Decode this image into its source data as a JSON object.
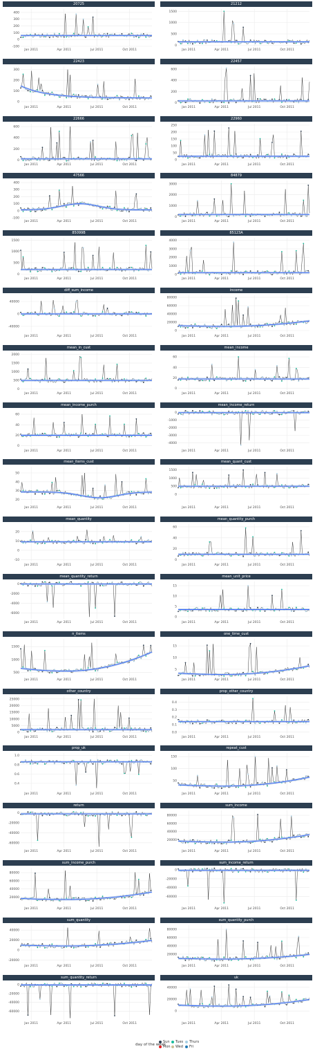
{
  "legend": {
    "title": "day of the week",
    "items": [
      {
        "label": "Sun",
        "color": "#2c3e50"
      },
      {
        "label": "Mon",
        "color": "#e31a1c"
      },
      {
        "label": "Tues",
        "color": "#18bc9c"
      },
      {
        "label": "Wed",
        "color": "#ccbe93"
      },
      {
        "label": "Thurs",
        "color": "#a6cee3"
      },
      {
        "label": "Fri",
        "color": "#1f78b4"
      }
    ]
  },
  "colors": {
    "strip": "#2c3e50",
    "line": "#000000",
    "smooth": "#3366ff",
    "band": "#b0c4de"
  },
  "x_ticks": [
    "Jan 2011",
    "Apr 2011",
    "Jul 2011",
    "Oct 2011"
  ],
  "chart_data": [
    {
      "type": "line",
      "title": "20725",
      "yticks": [
        "-100",
        "0",
        "100",
        "200",
        "300",
        "400"
      ],
      "ylim": [
        -100,
        450
      ],
      "base": 60,
      "spike": 380,
      "trend": "flat"
    },
    {
      "type": "line",
      "title": "21212",
      "yticks": [
        "0",
        "500",
        "1000",
        "1500"
      ],
      "ylim": [
        -50,
        1600
      ],
      "base": 150,
      "spike": 1500,
      "trend": "flat"
    },
    {
      "type": "line",
      "title": "22423",
      "yticks": [
        "0",
        "100",
        "200",
        "300"
      ],
      "ylim": [
        -20,
        330
      ],
      "base": 60,
      "spike": 300,
      "trend": "decay"
    },
    {
      "type": "line",
      "title": "22457",
      "yticks": [
        "0",
        "200",
        "400",
        "600"
      ],
      "ylim": [
        -20,
        650
      ],
      "base": 30,
      "spike": 620,
      "trend": "flat"
    },
    {
      "type": "line",
      "title": "22666",
      "yticks": [
        "0",
        "200",
        "400",
        "600"
      ],
      "ylim": [
        -20,
        650
      ],
      "base": 20,
      "spike": 600,
      "trend": "flat"
    },
    {
      "type": "line",
      "title": "22960",
      "yticks": [
        "0",
        "50",
        "100",
        "150",
        "200",
        "250"
      ],
      "ylim": [
        -10,
        260
      ],
      "base": 25,
      "spike": 230,
      "trend": "flat"
    },
    {
      "type": "line",
      "title": "47566",
      "yticks": [
        "-100",
        "0",
        "100",
        "200",
        "300",
        "400"
      ],
      "ylim": [
        -100,
        430
      ],
      "base": 40,
      "spike": 350,
      "trend": "hump"
    },
    {
      "type": "line",
      "title": "84879",
      "yticks": [
        "0",
        "1000",
        "2000",
        "3000"
      ],
      "ylim": [
        -100,
        3300
      ],
      "base": 200,
      "spike": 3000,
      "trend": "flat"
    },
    {
      "type": "line",
      "title": "85099B",
      "yticks": [
        "0",
        "500",
        "1000",
        "1500"
      ],
      "ylim": [
        -50,
        1600
      ],
      "base": 200,
      "spike": 1400,
      "trend": "flat"
    },
    {
      "type": "line",
      "title": "85123A",
      "yticks": [
        "0",
        "1000",
        "2000",
        "3000",
        "4000"
      ],
      "ylim": [
        -100,
        4300
      ],
      "base": 200,
      "spike": 3800,
      "trend": "flat"
    },
    {
      "type": "line",
      "title": "diff_sum_income",
      "yticks": [
        "-40000",
        "0",
        "40000"
      ],
      "ylim": [
        -60000,
        60000
      ],
      "base": 0,
      "spike": 45000,
      "trend": "flat"
    },
    {
      "type": "line",
      "title": "income",
      "yticks": [
        "0",
        "20000",
        "40000",
        "60000",
        "80000"
      ],
      "ylim": [
        -5000,
        85000
      ],
      "base": 18000,
      "spike": 78000,
      "trend": "rise"
    },
    {
      "type": "line",
      "title": "mean_in_cust",
      "yticks": [
        "0",
        "500",
        "1000",
        "1500",
        "2000"
      ],
      "ylim": [
        -50,
        2100
      ],
      "base": 500,
      "spike": 1900,
      "trend": "flat"
    },
    {
      "type": "line",
      "title": "mean_income",
      "yticks": [
        "0",
        "20",
        "40",
        "60"
      ],
      "ylim": [
        -3,
        68
      ],
      "base": 18,
      "spike": 60,
      "trend": "flat"
    },
    {
      "type": "line",
      "title": "mean_income_purch",
      "yticks": [
        "0",
        "20",
        "40",
        "60"
      ],
      "ylim": [
        -3,
        68
      ],
      "base": 20,
      "spike": 60,
      "trend": "flat"
    },
    {
      "type": "line",
      "title": "mean_income_return",
      "yticks": [
        "-4000",
        "-3000",
        "-2000",
        "-1000",
        "0"
      ],
      "ylim": [
        -4600,
        300
      ],
      "base": -50,
      "spike": -4300,
      "trend": "flat"
    },
    {
      "type": "line",
      "title": "mean_items_cust",
      "yticks": [
        "20",
        "30",
        "40",
        "50"
      ],
      "ylim": [
        15,
        57
      ],
      "base": 26,
      "spike": 50,
      "trend": "dip"
    },
    {
      "type": "line",
      "title": "mean_quant_cust",
      "yticks": [
        "0",
        "500",
        "1000",
        "1500"
      ],
      "ylim": [
        -600,
        1700
      ],
      "base": 500,
      "spike": 1500,
      "trend": "flat"
    },
    {
      "type": "line",
      "title": "mean_quantity",
      "yticks": [
        "-10",
        "0",
        "10",
        "20"
      ],
      "ylim": [
        -12,
        28
      ],
      "base": 9,
      "spike": 22,
      "trend": "flat"
    },
    {
      "type": "line",
      "title": "mean_quantity_purch",
      "yticks": [
        "0",
        "20",
        "40",
        "60"
      ],
      "ylim": [
        -3,
        65
      ],
      "base": 10,
      "spike": 58,
      "trend": "flat"
    },
    {
      "type": "line",
      "title": "mean_quantity_return",
      "yticks": [
        "-6000",
        "-4000",
        "-2000",
        "0"
      ],
      "ylim": [
        -7200,
        500
      ],
      "base": -20,
      "spike": -6800,
      "trend": "flat"
    },
    {
      "type": "line",
      "title": "mean_unit_price",
      "yticks": [
        "0",
        "5",
        "10",
        "15"
      ],
      "ylim": [
        -1,
        17
      ],
      "base": 3.5,
      "spike": 15,
      "trend": "flat"
    },
    {
      "type": "line",
      "title": "n_items",
      "yticks": [
        "500",
        "1000",
        "1500"
      ],
      "ylim": [
        350,
        1800
      ],
      "base": 1000,
      "spike": 1650,
      "trend": "rise"
    },
    {
      "type": "line",
      "title": "one_time_cust",
      "yticks": [
        "5",
        "10",
        "15"
      ],
      "ylim": [
        2,
        18
      ],
      "base": 5,
      "spike": 16,
      "trend": "rise"
    },
    {
      "type": "line",
      "title": "other_country",
      "yticks": [
        "0",
        "5000",
        "10000",
        "15000",
        "20000",
        "25000"
      ],
      "ylim": [
        -1000,
        27000
      ],
      "base": 2000,
      "spike": 25000,
      "trend": "flat"
    },
    {
      "type": "line",
      "title": "prop_other_country",
      "yticks": [
        "0.0",
        "0.1",
        "0.2",
        "0.3",
        "0.4"
      ],
      "ylim": [
        -0.02,
        0.48
      ],
      "base": 0.14,
      "spike": 0.45,
      "trend": "flat"
    },
    {
      "type": "line",
      "title": "prop_uk",
      "yticks": [
        "0.4",
        "0.6",
        "0.8",
        "1.0"
      ],
      "ylim": [
        0.25,
        1.05
      ],
      "base": 0.86,
      "spike": 0.3,
      "trend": "flat"
    },
    {
      "type": "line",
      "title": "repeat_cust",
      "yticks": [
        "50",
        "100",
        "150"
      ],
      "ylim": [
        10,
        165
      ],
      "base": 50,
      "spike": 150,
      "trend": "rise"
    },
    {
      "type": "line",
      "title": "return",
      "yticks": [
        "-60000",
        "-40000",
        "-20000",
        "0"
      ],
      "ylim": [
        -70000,
        5000
      ],
      "base": -2000,
      "spike": -68000,
      "trend": "flat"
    },
    {
      "type": "line",
      "title": "sum_income",
      "yticks": [
        "20000",
        "40000",
        "60000",
        "80000"
      ],
      "ylim": [
        0,
        92000
      ],
      "base": 25000,
      "spike": 82000,
      "trend": "rise"
    },
    {
      "type": "line",
      "title": "sum_income_purch",
      "yticks": [
        "20000",
        "40000",
        "60000",
        "80000"
      ],
      "ylim": [
        0,
        92000
      ],
      "base": 25000,
      "spike": 85000,
      "trend": "rise"
    },
    {
      "type": "line",
      "title": "sum_income_return",
      "yticks": [
        "-60000",
        "-40000",
        "-20000",
        "0"
      ],
      "ylim": [
        -80000,
        5000
      ],
      "base": -1000,
      "spike": -75000,
      "trend": "flat"
    },
    {
      "type": "line",
      "title": "sum_quantity",
      "yticks": [
        "-20000",
        "0",
        "20000",
        "40000"
      ],
      "ylim": [
        -25000,
        50000
      ],
      "base": 15000,
      "spike": 45000,
      "trend": "rise"
    },
    {
      "type": "line",
      "title": "sum_quantity_purch",
      "yticks": [
        "20000",
        "40000",
        "60000",
        "80000"
      ],
      "ylim": [
        0,
        90000
      ],
      "base": 15000,
      "spike": 80000,
      "trend": "rise"
    },
    {
      "type": "line",
      "title": "sum_quantity_return",
      "yticks": [
        "-60000",
        "-40000",
        "-20000",
        "0"
      ],
      "ylim": [
        -80000,
        5000
      ],
      "base": -500,
      "spike": -76000,
      "trend": "flat"
    },
    {
      "type": "line",
      "title": "uk",
      "yticks": [
        "0",
        "20000",
        "40000"
      ],
      "ylim": [
        -15000,
        48000
      ],
      "base": 15000,
      "spike": 44000,
      "trend": "rise"
    }
  ]
}
